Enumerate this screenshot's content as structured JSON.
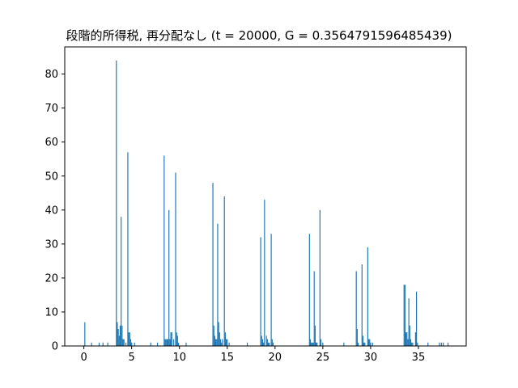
{
  "chart_data": {
    "type": "bar",
    "title": "段階的所得税, 再分配なし (t = 20000, G = 0.3564791596485439)",
    "xlabel": "",
    "ylabel": "",
    "xlim": [
      -2.0,
      40.0
    ],
    "ylim": [
      0,
      88
    ],
    "xticks": [
      0,
      5,
      10,
      15,
      20,
      25,
      30,
      35
    ],
    "xtick_labels": [
      "0",
      "5",
      "10",
      "15",
      "20",
      "25",
      "30",
      "35"
    ],
    "yticks": [
      0,
      10,
      20,
      30,
      40,
      50,
      60,
      70,
      80
    ],
    "ytick_labels": [
      "0",
      "10",
      "20",
      "30",
      "40",
      "50",
      "60",
      "70",
      "80"
    ],
    "bar_width": 0.1,
    "bar_color": "#1f77b4",
    "grid": false,
    "x": [
      0.1,
      0.8,
      1.6,
      2.0,
      2.5,
      3.4,
      3.5,
      3.6,
      3.7,
      3.8,
      3.9,
      4.0,
      4.1,
      4.2,
      4.4,
      4.6,
      4.7,
      4.8,
      4.9,
      5.0,
      5.3,
      7.0,
      7.7,
      8.4,
      8.5,
      8.6,
      8.7,
      8.8,
      8.9,
      9.0,
      9.1,
      9.2,
      9.4,
      9.6,
      9.7,
      9.8,
      9.9,
      10.7,
      13.5,
      13.6,
      13.7,
      13.8,
      13.9,
      14.0,
      14.1,
      14.2,
      14.3,
      14.4,
      14.5,
      14.7,
      14.8,
      14.9,
      15.0,
      15.2,
      17.1,
      18.5,
      18.6,
      18.7,
      18.8,
      18.9,
      19.1,
      19.2,
      19.3,
      19.4,
      19.6,
      19.7,
      19.8,
      23.6,
      23.7,
      23.8,
      23.9,
      24.0,
      24.1,
      24.2,
      24.3,
      24.4,
      24.7,
      24.8,
      25.0,
      27.2,
      28.5,
      28.6,
      28.7,
      29.1,
      29.2,
      29.3,
      29.4,
      29.7,
      29.8,
      29.9,
      30.0,
      30.2,
      33.5,
      33.6,
      33.7,
      33.8,
      33.9,
      34.0,
      34.1,
      34.2,
      34.3,
      34.4,
      34.7,
      34.8,
      34.9,
      36.0,
      37.2,
      37.4,
      37.6,
      38.1
    ],
    "values": [
      7,
      1,
      1,
      1,
      1,
      84,
      7,
      5,
      3,
      6,
      38,
      6,
      2,
      2,
      1,
      57,
      4,
      4,
      2,
      1,
      1,
      1,
      1,
      56,
      2,
      2,
      2,
      2,
      40,
      2,
      4,
      4,
      2,
      51,
      4,
      3,
      1,
      1,
      48,
      6,
      3,
      2,
      2,
      36,
      7,
      4,
      2,
      1,
      2,
      44,
      4,
      2,
      2,
      1,
      1,
      32,
      3,
      2,
      1,
      43,
      3,
      2,
      1,
      1,
      33,
      2,
      1,
      33,
      2,
      1,
      1,
      1,
      22,
      6,
      1,
      1,
      40,
      2,
      1,
      1,
      22,
      5,
      1,
      24,
      3,
      1,
      1,
      29,
      2,
      2,
      1,
      1,
      18,
      18,
      4,
      4,
      2,
      14,
      6,
      2,
      1,
      1,
      4,
      16,
      1,
      1,
      1,
      1,
      1,
      1
    ]
  }
}
